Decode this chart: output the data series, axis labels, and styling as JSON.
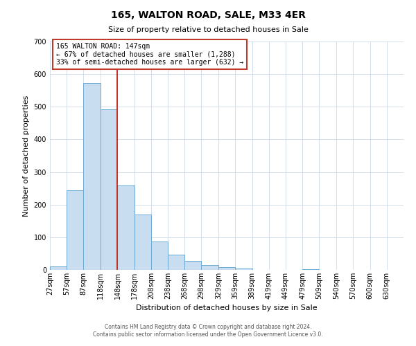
{
  "title": "165, WALTON ROAD, SALE, M33 4ER",
  "subtitle": "Size of property relative to detached houses in Sale",
  "xlabel": "Distribution of detached houses by size in Sale",
  "ylabel": "Number of detached properties",
  "footer_line1": "Contains HM Land Registry data © Crown copyright and database right 2024.",
  "footer_line2": "Contains public sector information licensed under the Open Government Licence v3.0.",
  "bin_labels": [
    "27sqm",
    "57sqm",
    "87sqm",
    "118sqm",
    "148sqm",
    "178sqm",
    "208sqm",
    "238sqm",
    "268sqm",
    "298sqm",
    "329sqm",
    "359sqm",
    "389sqm",
    "419sqm",
    "449sqm",
    "479sqm",
    "509sqm",
    "540sqm",
    "570sqm",
    "600sqm",
    "630sqm"
  ],
  "bin_lefts": [
    27,
    57,
    87,
    118,
    148,
    178,
    208,
    238,
    268,
    298,
    329,
    359,
    389,
    419,
    449,
    479,
    509,
    540,
    570,
    600,
    630
  ],
  "bin_widths": [
    30,
    30,
    31,
    30,
    30,
    30,
    30,
    30,
    30,
    31,
    30,
    30,
    30,
    30,
    30,
    30,
    31,
    30,
    30,
    30,
    30
  ],
  "bar_heights": [
    11,
    244,
    573,
    493,
    258,
    170,
    88,
    47,
    27,
    14,
    9,
    4,
    1,
    0,
    0,
    3,
    0,
    0,
    0,
    0,
    0
  ],
  "bar_color": "#c8ddf0",
  "bar_edge_color": "#6aaad4",
  "vline_x": 148,
  "vline_color": "#c0392b",
  "annotation_title": "165 WALTON ROAD: 147sqm",
  "annotation_line2": "← 67% of detached houses are smaller (1,288)",
  "annotation_line3": "33% of semi-detached houses are larger (632) →",
  "annotation_box_edgecolor": "#c0392b",
  "ylim": [
    0,
    700
  ],
  "yticks": [
    0,
    100,
    200,
    300,
    400,
    500,
    600,
    700
  ],
  "xlim_left": 27,
  "xlim_right": 660,
  "background_color": "#ffffff",
  "grid_color": "#ccd9e8",
  "title_fontsize": 10,
  "subtitle_fontsize": 8,
  "xlabel_fontsize": 8,
  "ylabel_fontsize": 8,
  "tick_fontsize": 7,
  "footer_fontsize": 5.5
}
